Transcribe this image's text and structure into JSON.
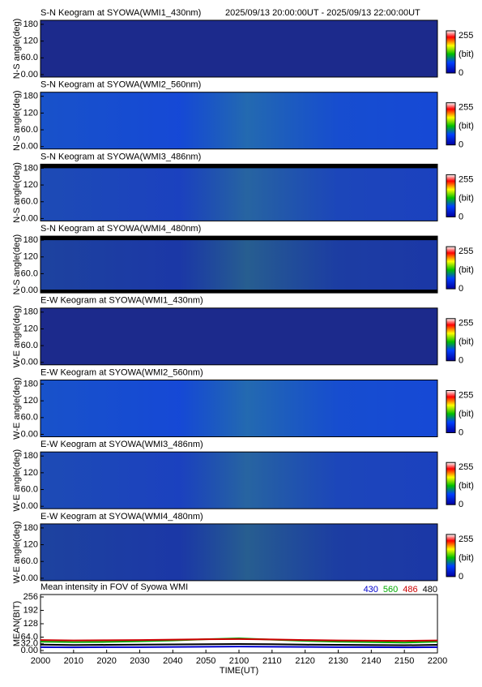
{
  "header": {
    "date_range": "2025/09/13 20:00:00UT - 2025/09/13 22:00:00UT"
  },
  "keograms": [
    {
      "title": "S-N Keogram at SYOWA(WMI1_430nm)",
      "ylabel": "N-S angle(deg)",
      "color": "#1c2a8c"
    },
    {
      "title": "S-N Keogram at SYOWA(WMI2_560nm)",
      "ylabel": "N-S angle(deg)",
      "color": "#1444dc"
    },
    {
      "title": "S-N Keogram at SYOWA(WMI3_486nm)",
      "ylabel": "N-S angle(deg)",
      "color": "#1a3cc4"
    },
    {
      "title": "S-N Keogram at SYOWA(WMI4_480nm)",
      "ylabel": "N-S angle(deg)",
      "color": "#1a32aa"
    },
    {
      "title": "E-W Keogram at SYOWA(WMI1_430nm)",
      "ylabel": "W-E angle(deg)",
      "color": "#1c2a8c"
    },
    {
      "title": "E-W Keogram at SYOWA(WMI2_560nm)",
      "ylabel": "W-E angle(deg)",
      "color": "#1444dc"
    },
    {
      "title": "E-W Keogram at SYOWA(WMI3_486nm)",
      "ylabel": "W-E angle(deg)",
      "color": "#1a3cc4"
    },
    {
      "title": "E-W Keogram at SYOWA(WMI4_480nm)",
      "ylabel": "W-E angle(deg)",
      "color": "#1a32aa"
    }
  ],
  "keogram_axis": {
    "ylim": [
      0,
      180
    ],
    "yticks": [
      {
        "value": 0,
        "label": "0.00"
      },
      {
        "value": 60,
        "label": "60.0"
      },
      120,
      180
    ]
  },
  "colorbar": {
    "ticks": [
      255,
      0
    ],
    "unit": "(bit)"
  },
  "chart_data": {
    "type": "line",
    "title": "Mean intensity in FOV of Syowa WMI",
    "xlabel": "TIME(UT)",
    "ylabel": "MEAN(BIT)",
    "categories": [
      "2000",
      "2010",
      "2020",
      "2030",
      "2040",
      "2050",
      "2100",
      "2110",
      "2120",
      "2130",
      "2140",
      "2150",
      "2200"
    ],
    "ylim": [
      0,
      256
    ],
    "yticks": [
      {
        "value": 0,
        "label": "0.00"
      },
      {
        "value": 32,
        "label": "32.0"
      },
      {
        "value": 64,
        "label": "64.0"
      },
      128,
      192,
      256
    ],
    "series": [
      {
        "name": "430",
        "color": "#0000cc",
        "values": [
          16,
          15,
          16,
          16,
          17,
          18,
          19,
          18,
          17,
          16,
          16,
          15,
          16
        ]
      },
      {
        "name": "560",
        "color": "#00aa00",
        "values": [
          42,
          40,
          41,
          44,
          48,
          54,
          58,
          52,
          46,
          42,
          40,
          38,
          42
        ]
      },
      {
        "name": "486",
        "color": "#cc0000",
        "values": [
          50,
          48,
          49,
          50,
          52,
          54,
          55,
          53,
          50,
          48,
          47,
          46,
          48
        ]
      },
      {
        "name": "480",
        "color": "#000000",
        "values": [
          28,
          26,
          27,
          28,
          29,
          30,
          31,
          30,
          28,
          27,
          26,
          25,
          27
        ]
      }
    ]
  }
}
